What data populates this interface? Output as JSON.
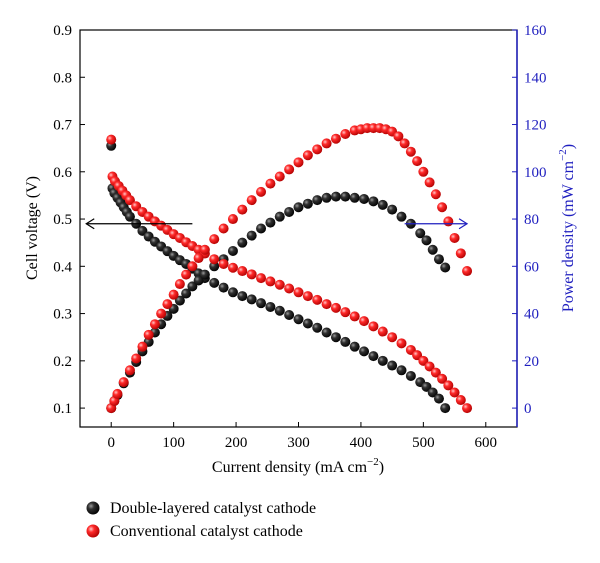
{
  "chart_data": {
    "type": "scatter",
    "xlabel": "Current density (mA cm",
    "xlabel_sup": "−2",
    "xlabel_end": ")",
    "ylabel_left": "Cell voltage (V)",
    "ylabel_right": "Power density (mW cm",
    "ylabel_right_sup": "−2",
    "ylabel_right_end": ")",
    "xlim": [
      -50,
      650
    ],
    "ylim_left": [
      0.06,
      0.9
    ],
    "ylim_right": [
      -8,
      160
    ],
    "x_ticks": [
      0,
      100,
      200,
      300,
      400,
      500,
      600
    ],
    "y_left_ticks": [
      0.1,
      0.2,
      0.3,
      0.4,
      0.5,
      0.6,
      0.7,
      0.8,
      0.9
    ],
    "y_right_ticks": [
      0,
      20,
      40,
      60,
      80,
      100,
      120,
      140,
      160
    ],
    "right_axis_color": "#1f1fbf",
    "series": [
      {
        "name": "Double-layered catalyst cathode",
        "color": "#111111",
        "voltage": {
          "x": [
            0,
            2,
            5,
            10,
            15,
            20,
            25,
            30,
            40,
            50,
            60,
            70,
            80,
            90,
            100,
            110,
            120,
            130,
            140,
            150,
            165,
            180,
            195,
            210,
            225,
            240,
            255,
            270,
            285,
            300,
            315,
            330,
            345,
            360,
            375,
            390,
            405,
            420,
            435,
            450,
            465,
            480,
            495,
            505,
            515,
            525,
            535
          ],
          "y": [
            0.655,
            0.565,
            0.555,
            0.545,
            0.535,
            0.525,
            0.515,
            0.505,
            0.49,
            0.475,
            0.463,
            0.452,
            0.442,
            0.432,
            0.422,
            0.413,
            0.405,
            0.395,
            0.385,
            0.375,
            0.365,
            0.355,
            0.345,
            0.337,
            0.33,
            0.322,
            0.314,
            0.306,
            0.297,
            0.288,
            0.279,
            0.27,
            0.26,
            0.25,
            0.24,
            0.23,
            0.22,
            0.21,
            0.2,
            0.19,
            0.18,
            0.168,
            0.155,
            0.145,
            0.133,
            0.12,
            0.1
          ]
        },
        "power": {
          "x": [
            0,
            5,
            10,
            20,
            30,
            40,
            50,
            60,
            70,
            80,
            90,
            100,
            110,
            120,
            130,
            140,
            150,
            165,
            180,
            195,
            210,
            225,
            240,
            255,
            270,
            285,
            300,
            315,
            330,
            345,
            360,
            375,
            390,
            405,
            420,
            435,
            450,
            465,
            480,
            495,
            505,
            515,
            525,
            535
          ],
          "y": [
            0,
            3,
            5.5,
            10.5,
            15,
            19.5,
            24,
            28,
            32,
            35.5,
            39,
            42,
            45.5,
            48.5,
            51.5,
            54,
            56.5,
            60,
            63,
            66.5,
            70,
            73,
            76,
            78.5,
            81,
            83,
            85,
            86.5,
            88,
            89,
            89.5,
            89.5,
            89,
            88.5,
            87.5,
            86,
            84,
            81,
            78,
            74,
            71,
            67,
            63,
            59.5
          ]
        }
      },
      {
        "name": "Conventional catalyst cathode",
        "color": "#ee1111",
        "voltage": {
          "x": [
            0,
            2,
            6,
            12,
            18,
            24,
            30,
            40,
            50,
            60,
            70,
            80,
            90,
            100,
            110,
            120,
            130,
            140,
            150,
            165,
            180,
            195,
            210,
            225,
            240,
            255,
            270,
            285,
            300,
            315,
            330,
            345,
            360,
            375,
            390,
            405,
            420,
            435,
            450,
            465,
            480,
            490,
            500,
            510,
            520,
            530,
            540,
            550,
            560,
            570
          ],
          "y": [
            0.668,
            0.59,
            0.58,
            0.57,
            0.56,
            0.55,
            0.54,
            0.527,
            0.515,
            0.505,
            0.495,
            0.486,
            0.477,
            0.468,
            0.46,
            0.451,
            0.443,
            0.435,
            0.427,
            0.415,
            0.405,
            0.397,
            0.39,
            0.383,
            0.375,
            0.368,
            0.361,
            0.353,
            0.345,
            0.337,
            0.329,
            0.32,
            0.312,
            0.303,
            0.294,
            0.284,
            0.273,
            0.262,
            0.25,
            0.237,
            0.223,
            0.212,
            0.2,
            0.188,
            0.175,
            0.162,
            0.148,
            0.133,
            0.117,
            0.1
          ]
        },
        "power": {
          "x": [
            0,
            5,
            10,
            20,
            30,
            40,
            50,
            60,
            70,
            80,
            90,
            100,
            110,
            120,
            130,
            140,
            150,
            165,
            180,
            195,
            210,
            225,
            240,
            255,
            270,
            285,
            300,
            315,
            330,
            345,
            360,
            375,
            390,
            400,
            410,
            420,
            430,
            440,
            450,
            460,
            470,
            480,
            490,
            500,
            510,
            520,
            530,
            540,
            550,
            560,
            570
          ],
          "y": [
            0,
            3,
            6,
            11,
            16,
            21,
            26,
            31,
            35.5,
            40,
            44,
            48,
            52.5,
            56.5,
            60,
            63.5,
            67,
            71.5,
            76,
            80,
            84,
            88,
            91.5,
            95,
            98,
            101,
            104,
            107,
            109.5,
            112,
            114,
            116,
            117.5,
            118,
            118.5,
            118.5,
            118.5,
            118,
            117,
            115,
            112,
            108.5,
            104.5,
            100,
            95.5,
            90.5,
            85,
            79,
            72,
            65.5,
            58
          ]
        }
      }
    ],
    "annotations": {
      "left_arrow": {
        "from": [
          130,
          0.49
        ],
        "to": [
          -40,
          0.49
        ],
        "target_axis": "left"
      },
      "right_arrow": {
        "from": [
          470,
          0.49
        ],
        "to": [
          570,
          0.49
        ],
        "target_axis": "right"
      }
    },
    "legend_placement": "bottom-left",
    "grid": false
  }
}
